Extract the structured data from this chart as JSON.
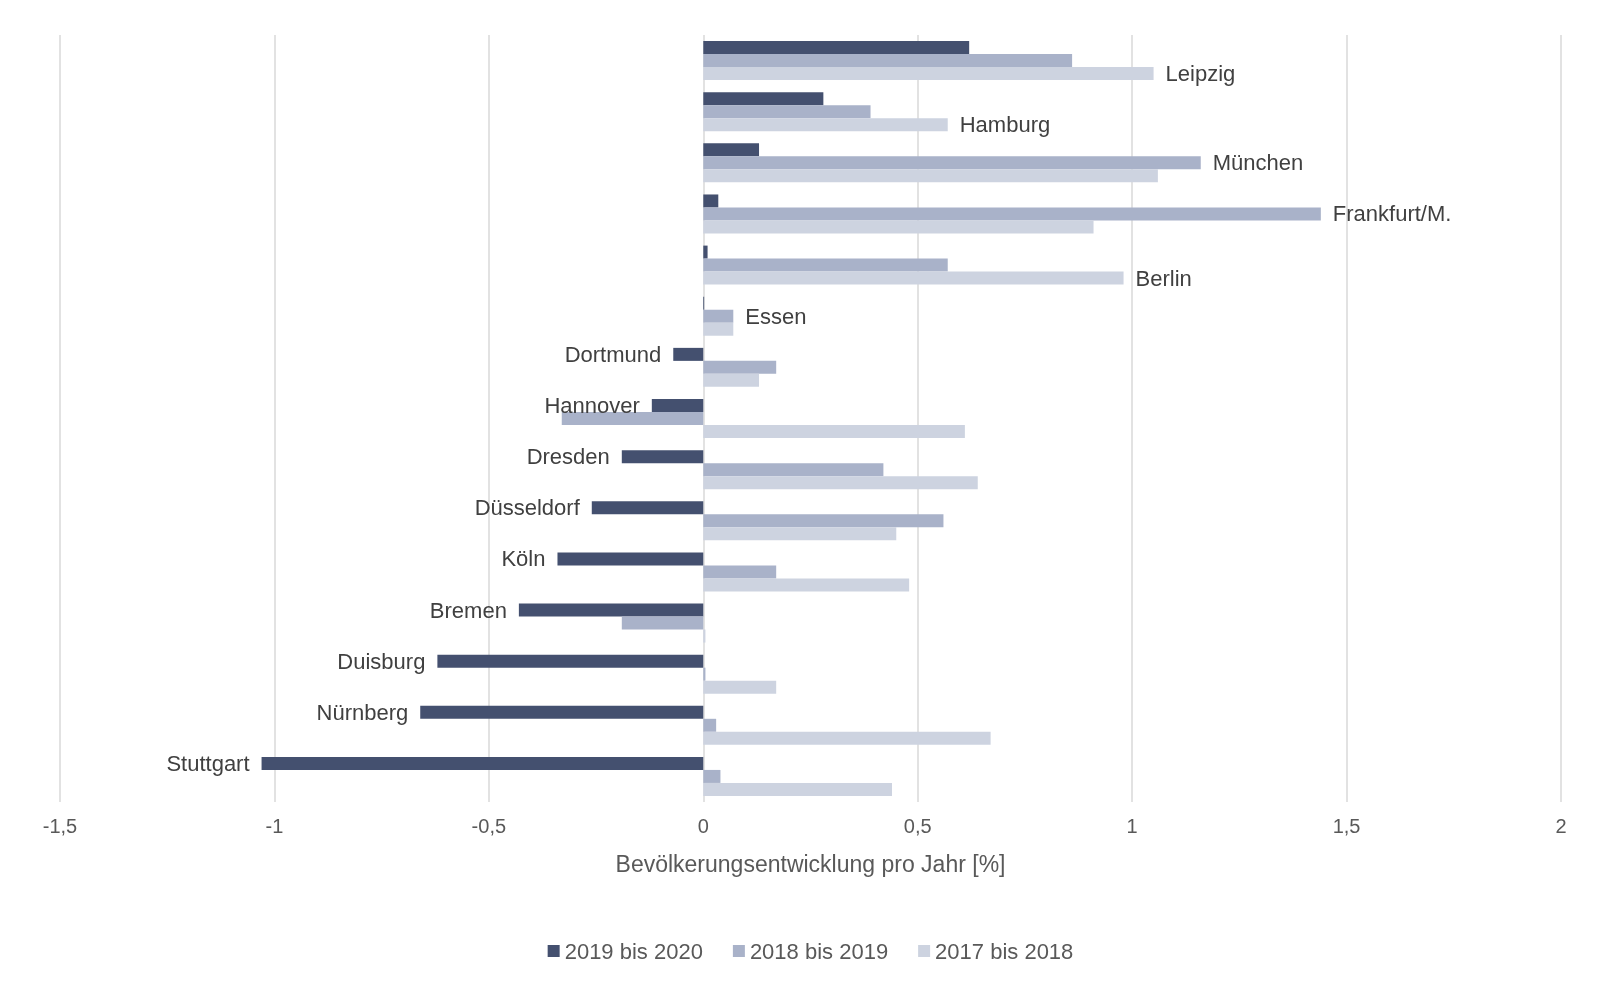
{
  "chart_data": {
    "type": "bar",
    "orientation": "horizontal",
    "xlabel": "Bevölkerungsentwicklung pro Jahr [%]",
    "categories": [
      "Leipzig",
      "Hamburg",
      "München",
      "Frankfurt/M.",
      "Berlin",
      "Essen",
      "Dortmund",
      "Hannover",
      "Dresden",
      "Düsseldorf",
      "Köln",
      "Bremen",
      "Duisburg",
      "Nürnberg",
      "Stuttgart"
    ],
    "series": [
      {
        "name": "2019 bis 2020",
        "color": "#44506f",
        "values": [
          0.62,
          0.28,
          0.13,
          0.035,
          0.01,
          0.002,
          -0.07,
          -0.12,
          -0.19,
          -0.26,
          -0.34,
          -0.43,
          -0.62,
          -0.66,
          -1.03
        ]
      },
      {
        "name": "2018 bis 2019",
        "color": "#a9b2c9",
        "values": [
          0.86,
          0.39,
          1.16,
          1.44,
          0.57,
          0.07,
          0.17,
          -0.33,
          0.42,
          0.56,
          0.17,
          -0.19,
          0.005,
          0.03,
          0.04
        ]
      },
      {
        "name": "2017 bis 2018",
        "color": "#cdd3e0",
        "values": [
          1.05,
          0.57,
          1.06,
          0.91,
          0.98,
          0.07,
          0.13,
          0.61,
          0.64,
          0.45,
          0.48,
          0.005,
          0.17,
          0.67,
          0.44
        ]
      }
    ],
    "xlim": [
      -1.5,
      2
    ],
    "xticks": [
      {
        "value": -1.5,
        "label": "-1,5"
      },
      -1,
      {
        "value": -0.5,
        "label": "-0,5"
      },
      0,
      {
        "value": 0.5,
        "label": "0,5"
      },
      1,
      {
        "value": 1.5,
        "label": "1,5"
      },
      2
    ],
    "grid": "x",
    "legend": "bottom"
  }
}
